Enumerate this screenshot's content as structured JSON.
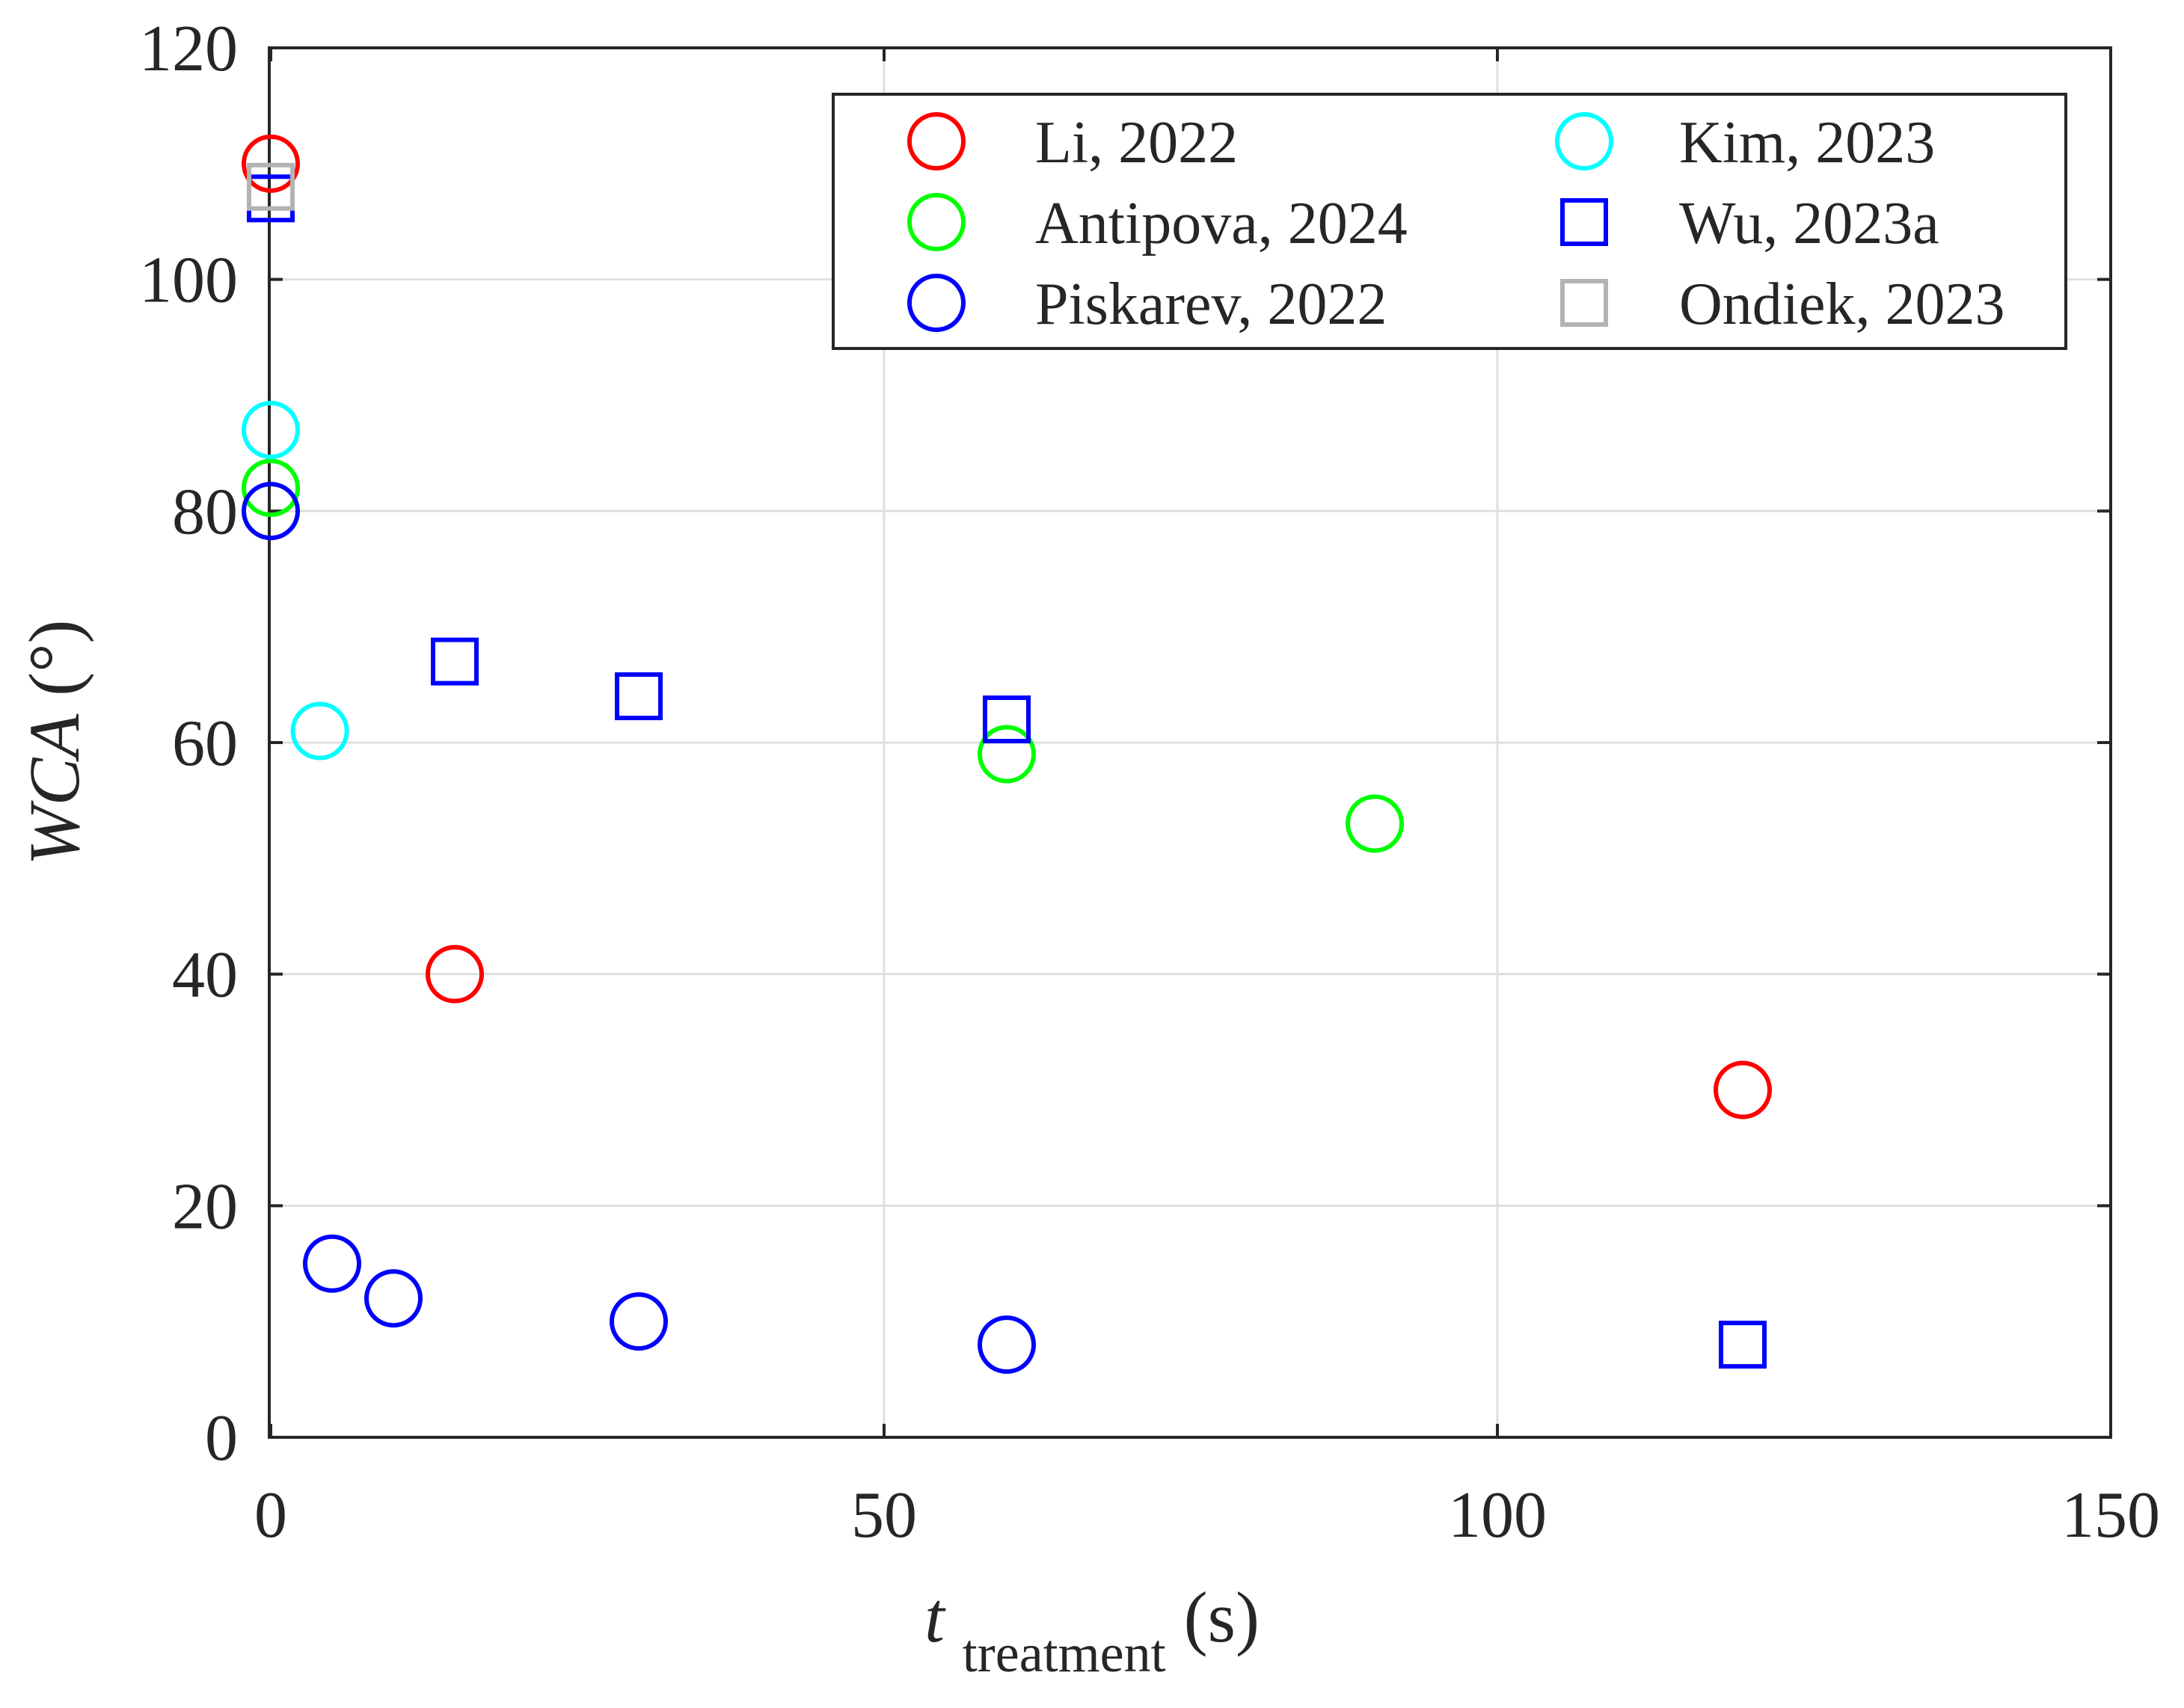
{
  "chart_data": {
    "type": "scatter",
    "title": "",
    "xlabel": {
      "main": "t",
      "subscript": "treatment",
      "unit": "(s)"
    },
    "ylabel": {
      "main": "WCA",
      "unit": "(°)"
    },
    "xlim": [
      0,
      150
    ],
    "ylim": [
      0,
      120
    ],
    "xticks": [
      0,
      50,
      100,
      150
    ],
    "yticks": [
      0,
      20,
      40,
      60,
      80,
      100,
      120
    ],
    "xtick_labels": [
      "0",
      "50",
      "100",
      "150"
    ],
    "ytick_labels": [
      "0",
      "20",
      "40",
      "60",
      "80",
      "100",
      "120"
    ],
    "grid": true,
    "legend_location": "top-right",
    "series": [
      {
        "name": "Li, 2022",
        "marker": "circle",
        "color": "#ff0000",
        "points": [
          [
            0,
            110
          ],
          [
            15,
            40
          ],
          [
            120,
            30
          ]
        ]
      },
      {
        "name": "Antipova, 2024",
        "marker": "circle",
        "color": "#00ff00",
        "points": [
          [
            0,
            82
          ],
          [
            60,
            59
          ],
          [
            90,
            53
          ]
        ]
      },
      {
        "name": "Piskarev, 2022",
        "marker": "circle",
        "color": "#0000ff",
        "points": [
          [
            0,
            80
          ],
          [
            5,
            15
          ],
          [
            10,
            12
          ],
          [
            30,
            10
          ],
          [
            60,
            8
          ]
        ]
      },
      {
        "name": "Kim, 2023",
        "marker": "circle",
        "color": "#00ffff",
        "points": [
          [
            0,
            87
          ],
          [
            4,
            61
          ]
        ]
      },
      {
        "name": "Wu, 2023a",
        "marker": "square",
        "color": "#0000ff",
        "points": [
          [
            0,
            107
          ],
          [
            15,
            67
          ],
          [
            30,
            64
          ],
          [
            60,
            62
          ],
          [
            120,
            8
          ]
        ]
      },
      {
        "name": "Ondiek, 2023",
        "marker": "square",
        "color": "#b3b3b3",
        "points": [
          [
            0,
            108
          ]
        ]
      }
    ]
  }
}
